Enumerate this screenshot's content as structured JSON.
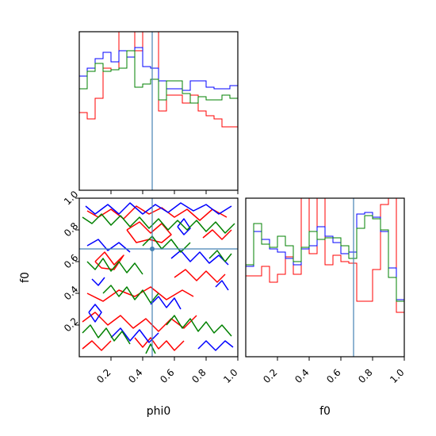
{
  "chart_data": {
    "type": "corner",
    "parameters": [
      "phi0",
      "f0"
    ],
    "truth": {
      "phi0": 0.46,
      "f0": 0.68
    },
    "series_colors": [
      "#ff0000",
      "#0000ff",
      "#008000"
    ],
    "truth_color": "#4682b4",
    "axes": {
      "phi0": {
        "label": "phi0",
        "range": [
          0,
          1
        ],
        "ticks": [
          0.2,
          0.4,
          0.6,
          0.8,
          1.0
        ],
        "tick_labels": [
          "0.2",
          "0.4",
          "0.6",
          "0.8",
          "1.0"
        ]
      },
      "f0": {
        "label": "f0",
        "range": [
          0,
          1
        ],
        "ticks": [
          0.2,
          0.4,
          0.6,
          0.8,
          1.0
        ],
        "tick_labels": [
          "0.2",
          "0.4",
          "0.6",
          "0.8",
          "1.0"
        ]
      }
    },
    "hist_phi0": {
      "bins": [
        0,
        0.05,
        0.1,
        0.15,
        0.2,
        0.25,
        0.3,
        0.35,
        0.4,
        0.45,
        0.5,
        0.55,
        0.6,
        0.65,
        0.7,
        0.75,
        0.8,
        0.85,
        0.9,
        0.95,
        1.0
      ],
      "ymax": 1.0,
      "series": [
        {
          "values": [
            0.49,
            0.45,
            0.58,
            0.77,
            0.76,
            1.0,
            1.0,
            0.88,
            1.0,
            1.0,
            0.5,
            0.6,
            0.6,
            0.55,
            0.6,
            0.5,
            0.47,
            0.45,
            0.4,
            0.4
          ]
        },
        {
          "values": [
            0.72,
            0.77,
            0.83,
            0.87,
            0.81,
            0.88,
            0.84,
            0.9,
            0.78,
            0.77,
            0.69,
            0.64,
            0.64,
            0.63,
            0.69,
            0.69,
            0.65,
            0.64,
            0.64,
            0.66
          ]
        },
        {
          "values": [
            0.64,
            0.75,
            0.8,
            0.75,
            0.76,
            0.77,
            0.88,
            0.65,
            0.67,
            0.7,
            0.57,
            0.69,
            0.69,
            0.61,
            0.55,
            0.59,
            0.57,
            0.57,
            0.6,
            0.58
          ]
        }
      ]
    },
    "hist_f0": {
      "bins": [
        0,
        0.05,
        0.1,
        0.15,
        0.2,
        0.25,
        0.3,
        0.35,
        0.4,
        0.45,
        0.5,
        0.55,
        0.6,
        0.65,
        0.7,
        0.75,
        0.8,
        0.85,
        0.9,
        0.95,
        1.0
      ],
      "ymax": 1.0,
      "series": [
        {
          "values": [
            0.51,
            0.51,
            0.57,
            0.47,
            0.52,
            0.63,
            0.52,
            1.0,
            0.65,
            1.0,
            0.58,
            0.64,
            0.6,
            0.59,
            0.35,
            0.35,
            0.55,
            0.96,
            1.0,
            0.28
          ]
        },
        {
          "values": [
            0.57,
            0.79,
            0.74,
            0.68,
            0.66,
            0.62,
            0.58,
            0.68,
            0.7,
            0.82,
            0.76,
            0.72,
            0.65,
            0.66,
            0.9,
            0.91,
            0.88,
            0.79,
            0.56,
            0.36
          ]
        },
        {
          "values": [
            0.58,
            0.84,
            0.71,
            0.69,
            0.76,
            0.7,
            0.6,
            0.69,
            0.79,
            0.74,
            0.75,
            0.75,
            0.7,
            0.62,
            0.81,
            0.89,
            0.87,
            0.8,
            0.5,
            0.35
          ]
        }
      ]
    },
    "contours": {
      "note_values_in_data_units": true,
      "series": [
        {
          "paths": [
            [
              [
                0.05,
                0.92
              ],
              [
                0.12,
                0.88
              ],
              [
                0.2,
                0.93
              ],
              [
                0.28,
                0.87
              ],
              [
                0.36,
                0.95
              ],
              [
                0.44,
                0.9
              ],
              [
                0.52,
                0.94
              ],
              [
                0.6,
                0.88
              ],
              [
                0.68,
                0.93
              ],
              [
                0.76,
                0.86
              ],
              [
                0.84,
                0.93
              ],
              [
                0.93,
                0.88
              ]
            ],
            [
              [
                0.05,
                0.4
              ],
              [
                0.15,
                0.35
              ],
              [
                0.25,
                0.42
              ],
              [
                0.35,
                0.38
              ],
              [
                0.45,
                0.44
              ],
              [
                0.55,
                0.36
              ],
              [
                0.65,
                0.42
              ],
              [
                0.72,
                0.38
              ]
            ],
            [
              [
                0.02,
                0.22
              ],
              [
                0.1,
                0.28
              ],
              [
                0.18,
                0.2
              ],
              [
                0.26,
                0.26
              ],
              [
                0.34,
                0.18
              ],
              [
                0.42,
                0.24
              ],
              [
                0.5,
                0.16
              ],
              [
                0.58,
                0.24
              ],
              [
                0.66,
                0.18
              ],
              [
                0.74,
                0.26
              ]
            ],
            [
              [
                0.3,
                0.8
              ],
              [
                0.38,
                0.85
              ],
              [
                0.45,
                0.78
              ],
              [
                0.52,
                0.84
              ],
              [
                0.58,
                0.77
              ],
              [
                0.52,
                0.72
              ],
              [
                0.44,
                0.74
              ],
              [
                0.36,
                0.72
              ],
              [
                0.3,
                0.8
              ]
            ],
            [
              [
                0.6,
                0.5
              ],
              [
                0.67,
                0.55
              ],
              [
                0.74,
                0.48
              ],
              [
                0.8,
                0.54
              ],
              [
                0.87,
                0.47
              ],
              [
                0.92,
                0.52
              ]
            ],
            [
              [
                0.35,
                0.12
              ],
              [
                0.4,
                0.06
              ],
              [
                0.45,
                0.12
              ],
              [
                0.5,
                0.05
              ],
              [
                0.55,
                0.1
              ],
              [
                0.6,
                0.04
              ],
              [
                0.66,
                0.1
              ]
            ],
            [
              [
                0.1,
                0.6
              ],
              [
                0.16,
                0.66
              ],
              [
                0.22,
                0.58
              ],
              [
                0.28,
                0.64
              ],
              [
                0.22,
                0.55
              ],
              [
                0.14,
                0.56
              ],
              [
                0.1,
                0.6
              ]
            ],
            [
              [
                0.78,
                0.75
              ],
              [
                0.84,
                0.8
              ],
              [
                0.9,
                0.74
              ],
              [
                0.96,
                0.8
              ]
            ],
            [
              [
                0.02,
                0.05
              ],
              [
                0.08,
                0.1
              ],
              [
                0.14,
                0.04
              ],
              [
                0.2,
                0.1
              ]
            ]
          ]
        },
        {
          "paths": [
            [
              [
                0.04,
                0.95
              ],
              [
                0.1,
                0.9
              ],
              [
                0.18,
                0.96
              ],
              [
                0.25,
                0.9
              ],
              [
                0.32,
                0.97
              ],
              [
                0.4,
                0.9
              ],
              [
                0.48,
                0.96
              ],
              [
                0.56,
                0.91
              ],
              [
                0.64,
                0.97
              ],
              [
                0.72,
                0.92
              ],
              [
                0.8,
                0.96
              ],
              [
                0.88,
                0.9
              ],
              [
                0.96,
                0.95
              ]
            ],
            [
              [
                0.05,
                0.7
              ],
              [
                0.12,
                0.74
              ],
              [
                0.18,
                0.67
              ],
              [
                0.25,
                0.72
              ],
              [
                0.32,
                0.66
              ]
            ],
            [
              [
                0.06,
                0.28
              ],
              [
                0.1,
                0.22
              ],
              [
                0.14,
                0.28
              ],
              [
                0.1,
                0.33
              ],
              [
                0.06,
                0.28
              ]
            ],
            [
              [
                0.58,
                0.62
              ],
              [
                0.64,
                0.67
              ],
              [
                0.7,
                0.6
              ],
              [
                0.76,
                0.66
              ],
              [
                0.82,
                0.59
              ],
              [
                0.88,
                0.64
              ],
              [
                0.94,
                0.58
              ]
            ],
            [
              [
                0.2,
                0.12
              ],
              [
                0.26,
                0.18
              ],
              [
                0.32,
                0.1
              ],
              [
                0.38,
                0.17
              ],
              [
                0.44,
                0.09
              ],
              [
                0.5,
                0.15
              ]
            ],
            [
              [
                0.45,
                0.33
              ],
              [
                0.5,
                0.38
              ],
              [
                0.55,
                0.31
              ],
              [
                0.6,
                0.37
              ],
              [
                0.64,
                0.3
              ]
            ],
            [
              [
                0.75,
                0.05
              ],
              [
                0.8,
                0.1
              ],
              [
                0.86,
                0.04
              ],
              [
                0.92,
                0.1
              ],
              [
                0.97,
                0.06
              ]
            ],
            [
              [
                0.62,
                0.82
              ],
              [
                0.66,
                0.87
              ],
              [
                0.7,
                0.81
              ],
              [
                0.66,
                0.77
              ],
              [
                0.62,
                0.82
              ]
            ],
            [
              [
                0.86,
                0.44
              ],
              [
                0.9,
                0.48
              ],
              [
                0.94,
                0.42
              ]
            ],
            [
              [
                0.08,
                0.49
              ],
              [
                0.12,
                0.45
              ],
              [
                0.16,
                0.5
              ]
            ]
          ]
        },
        {
          "paths": [
            [
              [
                0.02,
                0.88
              ],
              [
                0.08,
                0.84
              ],
              [
                0.14,
                0.9
              ],
              [
                0.2,
                0.83
              ],
              [
                0.26,
                0.89
              ],
              [
                0.32,
                0.82
              ],
              [
                0.38,
                0.88
              ],
              [
                0.44,
                0.81
              ],
              [
                0.5,
                0.87
              ],
              [
                0.56,
                0.8
              ],
              [
                0.62,
                0.86
              ],
              [
                0.68,
                0.8
              ],
              [
                0.74,
                0.86
              ],
              [
                0.8,
                0.79
              ],
              [
                0.86,
                0.85
              ],
              [
                0.92,
                0.78
              ],
              [
                0.98,
                0.84
              ]
            ],
            [
              [
                0.05,
                0.6
              ],
              [
                0.1,
                0.55
              ],
              [
                0.15,
                0.62
              ],
              [
                0.2,
                0.54
              ],
              [
                0.25,
                0.6
              ],
              [
                0.3,
                0.53
              ],
              [
                0.35,
                0.59
              ],
              [
                0.4,
                0.52
              ]
            ],
            [
              [
                0.4,
                0.7
              ],
              [
                0.46,
                0.76
              ],
              [
                0.52,
                0.68
              ],
              [
                0.58,
                0.74
              ],
              [
                0.64,
                0.66
              ],
              [
                0.7,
                0.72
              ]
            ],
            [
              [
                0.15,
                0.4
              ],
              [
                0.2,
                0.45
              ],
              [
                0.25,
                0.38
              ],
              [
                0.3,
                0.44
              ],
              [
                0.35,
                0.36
              ],
              [
                0.4,
                0.42
              ],
              [
                0.45,
                0.34
              ],
              [
                0.5,
                0.4
              ]
            ],
            [
              [
                0.02,
                0.15
              ],
              [
                0.07,
                0.2
              ],
              [
                0.12,
                0.12
              ],
              [
                0.17,
                0.18
              ],
              [
                0.22,
                0.1
              ],
              [
                0.27,
                0.16
              ],
              [
                0.32,
                0.08
              ]
            ],
            [
              [
                0.55,
                0.2
              ],
              [
                0.6,
                0.26
              ],
              [
                0.65,
                0.18
              ],
              [
                0.7,
                0.24
              ],
              [
                0.75,
                0.16
              ],
              [
                0.8,
                0.22
              ],
              [
                0.85,
                0.15
              ],
              [
                0.9,
                0.2
              ],
              [
                0.96,
                0.13
              ]
            ],
            [
              [
                0.82,
                0.62
              ],
              [
                0.87,
                0.67
              ],
              [
                0.92,
                0.6
              ],
              [
                0.96,
                0.65
              ]
            ],
            [
              [
                0.42,
                0.02
              ],
              [
                0.45,
                0.08
              ],
              [
                0.48,
                0.02
              ]
            ]
          ]
        }
      ]
    }
  }
}
